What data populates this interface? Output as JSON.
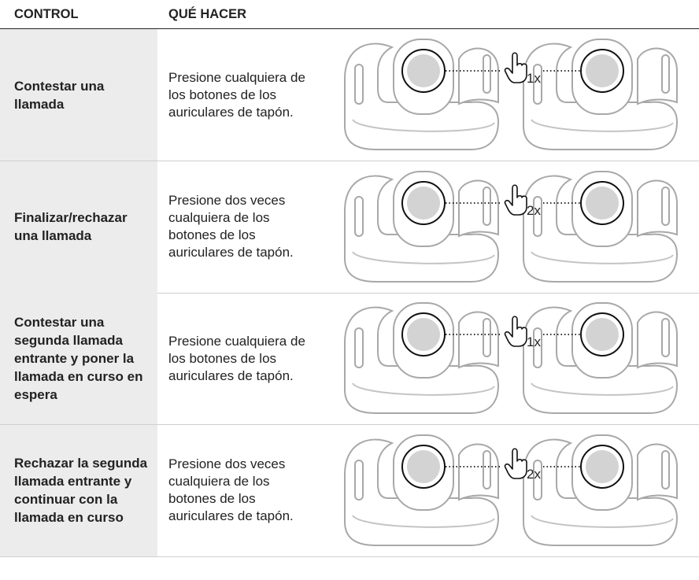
{
  "header": {
    "control": "CONTROL",
    "action": "QUÉ HACER"
  },
  "rows": [
    {
      "control": "Contestar una llamada",
      "action": "Presione cualquiera de los botones de los auriculares de tapón.",
      "presses": "1x"
    },
    {
      "control": "Finalizar/rechazar una llamada",
      "action": "Presione dos veces cualquiera de los botones de los auriculares de tapón.",
      "presses": "2x"
    },
    {
      "control": "Contestar una segunda llamada entrante y poner la llamada en curso en espera",
      "action": "Presione cualquiera de los botones de los auriculares de tapón.",
      "presses": "1x"
    },
    {
      "control": "Rechazar la segunda llamada entrante y continuar con la llamada en curso",
      "action": "Presione dos veces cualquiera de los botones de los auriculares de tapón.",
      "presses": "2x"
    }
  ]
}
